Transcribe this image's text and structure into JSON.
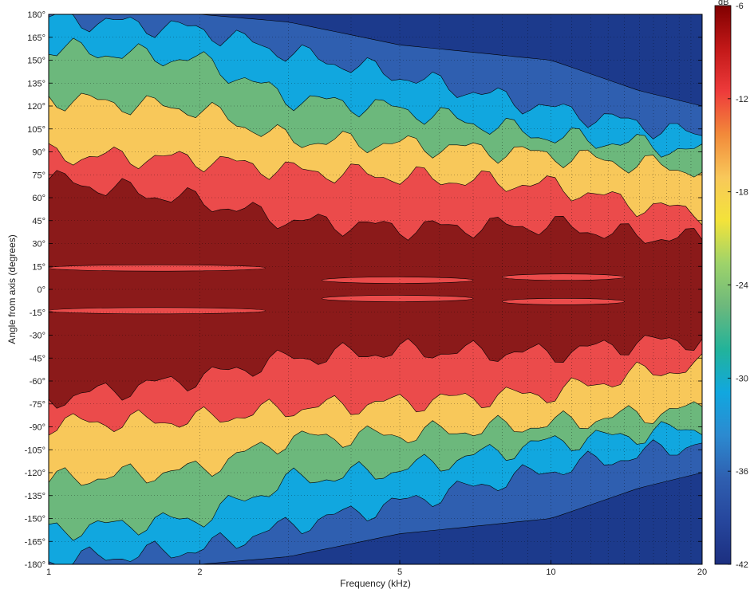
{
  "chart_data": {
    "type": "heatmap",
    "subtype": "filled-contour",
    "title": "",
    "xlabel": "Frequency (kHz)",
    "ylabel": "Angle from axis (degrees)",
    "x_scale": "log",
    "xlim": [
      1,
      20
    ],
    "ylim": [
      -180,
      180
    ],
    "grid": true,
    "x_ticks": [
      1,
      2,
      5,
      10,
      20
    ],
    "x_tick_labels": [
      "1",
      "2",
      "5",
      "10",
      "20"
    ],
    "y_ticks": [
      180,
      165,
      150,
      135,
      120,
      105,
      90,
      75,
      60,
      45,
      30,
      15,
      0,
      -15,
      -30,
      -45,
      -60,
      -75,
      -90,
      -105,
      -120,
      -135,
      -150,
      -165,
      -180
    ],
    "y_tick_labels": [
      "180°",
      "165°",
      "150°",
      "135°",
      "120°",
      "105°",
      "90°",
      "75°",
      "60°",
      "45°",
      "30°",
      "15°",
      "0°",
      "-15°",
      "-30°",
      "-45°",
      "-60°",
      "-75°",
      "-90°",
      "-105°",
      "-120°",
      "-135°",
      "-150°",
      "-165°",
      "-180°"
    ],
    "colorbar": {
      "label": "dB",
      "range": [
        -42,
        -6
      ],
      "ticks": [
        -6,
        -12,
        -18,
        -24,
        -30,
        -36,
        -42
      ],
      "tick_labels": [
        "-6",
        "-12",
        "-18",
        "-24",
        "-30",
        "-36",
        "-42"
      ]
    },
    "contour_levels_db": [
      -6,
      -9,
      -12,
      -15,
      -18,
      -21,
      -24,
      -27,
      -30,
      -33,
      -36,
      -39,
      -42
    ],
    "band_colors": [
      "#8b1a1a",
      "#eb4b4b",
      "#f8c85a",
      "#6cb87c",
      "#11a7df",
      "#2f5fb0",
      "#1c3a8c"
    ],
    "contour_boundaries_deg": {
      "freq_khz": [
        1,
        2,
        3,
        5,
        10,
        15,
        20
      ],
      "minus_6_db": [
        72,
        58,
        45,
        40,
        42,
        35,
        33
      ],
      "minus_12_db": [
        88,
        85,
        78,
        74,
        68,
        55,
        50
      ],
      "minus_18_db": [
        125,
        118,
        98,
        95,
        88,
        82,
        78
      ],
      "minus_24_db": [
        158,
        150,
        125,
        118,
        100,
        95,
        90
      ],
      "minus_30_db": [
        178,
        170,
        155,
        140,
        118,
        108,
        100
      ],
      "minus_36_db": [
        180,
        180,
        175,
        160,
        150,
        130,
        120
      ]
    }
  }
}
